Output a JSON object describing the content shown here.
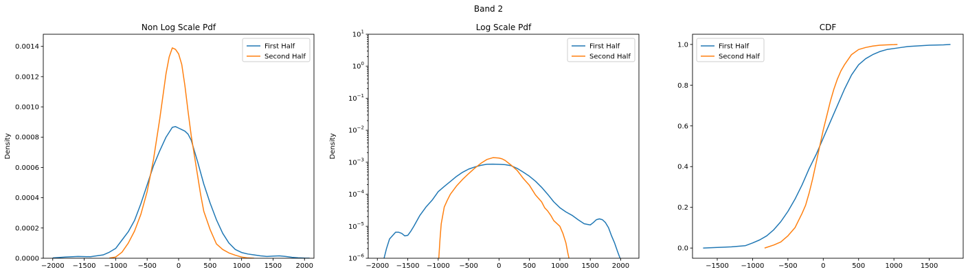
{
  "figure": {
    "suptitle": "Band 2"
  },
  "colors": {
    "series1": "#1f77b4",
    "series2": "#ff7f0e"
  },
  "chart_data": [
    {
      "type": "line",
      "title": "Non Log Scale Pdf",
      "xlabel": "",
      "ylabel": "Density",
      "xlim": [
        -2150,
        2150
      ],
      "ylim": [
        0,
        0.00148
      ],
      "yscale": "linear",
      "xticks": [
        -2000,
        -1500,
        -1000,
        -500,
        0,
        500,
        1000,
        1500,
        2000
      ],
      "yticks": [
        0,
        0.0002,
        0.0004,
        0.0006,
        0.0008,
        0.001,
        0.0012,
        0.0014
      ],
      "ytick_labels": [
        "0.0000",
        "0.0002",
        "0.0004",
        "0.0006",
        "0.0008",
        "0.0010",
        "0.0012",
        "0.0014"
      ],
      "legend_position": "upper right",
      "series": [
        {
          "name": "First Half",
          "x": [
            -2000,
            -1800,
            -1600,
            -1400,
            -1200,
            -1100,
            -1000,
            -900,
            -800,
            -700,
            -600,
            -500,
            -400,
            -300,
            -200,
            -100,
            -50,
            0,
            50,
            100,
            150,
            200,
            300,
            400,
            500,
            600,
            700,
            800,
            900,
            1000,
            1100,
            1200,
            1300,
            1400,
            1500,
            1600,
            1700,
            1800,
            1900,
            2000,
            2080
          ],
          "y": [
            2e-06,
            8e-06,
            1.2e-05,
            1e-05,
            2.2e-05,
            4e-05,
            6.5e-05,
            0.00012,
            0.000175,
            0.00025,
            0.00036,
            0.000485,
            0.00061,
            0.00071,
            0.0008,
            0.000865,
            0.00087,
            0.00086,
            0.00085,
            0.00084,
            0.00082,
            0.00078,
            0.00064,
            0.00049,
            0.000365,
            0.000255,
            0.000165,
            0.0001,
            5.8e-05,
            3.8e-05,
            2.8e-05,
            2.2e-05,
            1.6e-05,
            1.2e-05,
            1.4e-05,
            1.6e-05,
            1.2e-05,
            6e-06,
            3e-06,
            1e-06,
            5e-07
          ]
        },
        {
          "name": "Second Half",
          "x": [
            -1100,
            -1000,
            -900,
            -800,
            -700,
            -600,
            -500,
            -400,
            -300,
            -200,
            -150,
            -100,
            -50,
            0,
            50,
            100,
            150,
            200,
            250,
            300,
            350,
            400,
            500,
            600,
            700,
            800,
            900,
            1000,
            1100,
            1200
          ],
          "y": [
            1e-06,
            8e-06,
            4e-05,
            0.0001,
            0.00018,
            0.00029,
            0.00044,
            0.00065,
            0.00092,
            0.00122,
            0.00133,
            0.00139,
            0.00138,
            0.00135,
            0.00128,
            0.00114,
            0.00097,
            0.00081,
            0.00068,
            0.00055,
            0.00042,
            0.00031,
            0.00019,
            9.5e-05,
            5.8e-05,
            3.5e-05,
            2e-05,
            8e-06,
            2e-06,
            2e-07
          ]
        }
      ]
    },
    {
      "type": "line",
      "title": "Log Scale Pdf",
      "xlabel": "",
      "ylabel": "Density",
      "xlim": [
        -2150,
        2300
      ],
      "ylim": [
        1e-06,
        10
      ],
      "yscale": "log",
      "xticks": [
        -2000,
        -1500,
        -1000,
        -500,
        0,
        500,
        1000,
        1500,
        2000
      ],
      "yticks": [
        1e-06,
        1e-05,
        0.0001,
        0.001,
        0.01,
        0.1,
        1,
        10
      ],
      "ytick_labels": [
        [
          "10",
          "−6"
        ],
        [
          "10",
          "−5"
        ],
        [
          "10",
          "−4"
        ],
        [
          "10",
          "−3"
        ],
        [
          "10",
          "−2"
        ],
        [
          "10",
          "−1"
        ],
        [
          "10",
          "0"
        ],
        [
          "10",
          "1"
        ]
      ],
      "legend_position": "upper right",
      "series": [
        {
          "name": "First Half",
          "x": [
            -1890,
            -1850,
            -1800,
            -1700,
            -1650,
            -1600,
            -1550,
            -1500,
            -1450,
            -1400,
            -1300,
            -1200,
            -1100,
            -1000,
            -900,
            -800,
            -700,
            -600,
            -500,
            -400,
            -300,
            -200,
            -100,
            0,
            100,
            200,
            300,
            400,
            500,
            600,
            700,
            800,
            900,
            1000,
            1100,
            1200,
            1300,
            1400,
            1500,
            1550,
            1600,
            1650,
            1700,
            1750,
            1800,
            1850,
            1900,
            1950,
            1990
          ],
          "y": [
            1e-06,
            2e-06,
            4e-06,
            6.5e-06,
            6.5e-06,
            6e-06,
            5e-06,
            5.2e-06,
            7e-06,
            1e-05,
            2.2e-05,
            4e-05,
            6.5e-05,
            0.00012,
            0.000175,
            0.00025,
            0.00036,
            0.000485,
            0.00061,
            0.00071,
            0.0008,
            0.000865,
            0.00087,
            0.00086,
            0.00084,
            0.00078,
            0.00064,
            0.00049,
            0.000365,
            0.000255,
            0.000165,
            0.0001,
            5.8e-05,
            3.8e-05,
            2.8e-05,
            2.2e-05,
            1.6e-05,
            1.2e-05,
            1.1e-05,
            1.3e-05,
            1.6e-05,
            1.7e-05,
            1.6e-05,
            1.3e-05,
            9e-06,
            5e-06,
            3e-06,
            1.6e-06,
            1e-06
          ]
        },
        {
          "name": "Second Half",
          "x": [
            -990,
            -970,
            -950,
            -900,
            -850,
            -800,
            -700,
            -600,
            -500,
            -400,
            -300,
            -200,
            -100,
            -50,
            0,
            50,
            100,
            200,
            300,
            400,
            500,
            600,
            700,
            750,
            800,
            850,
            900,
            1000,
            1050,
            1100,
            1130,
            1150
          ],
          "y": [
            1e-06,
            4e-06,
            1.2e-05,
            4e-05,
            6.5e-05,
            0.0001,
            0.00018,
            0.00029,
            0.00044,
            0.00065,
            0.00092,
            0.00122,
            0.00139,
            0.00138,
            0.00135,
            0.00128,
            0.00114,
            0.00081,
            0.00055,
            0.00031,
            0.00019,
            9.5e-05,
            5.8e-05,
            3.8e-05,
            3e-05,
            2.2e-05,
            1.5e-05,
            1e-05,
            6e-06,
            3e-06,
            1.5e-06,
            1e-06
          ]
        }
      ]
    },
    {
      "type": "line",
      "title": "CDF",
      "xlabel": "",
      "ylabel": "",
      "xlim": [
        -1850,
        1980
      ],
      "ylim": [
        -0.05,
        1.05
      ],
      "yscale": "linear",
      "xticks": [
        -1500,
        -1000,
        -500,
        0,
        500,
        1000,
        1500
      ],
      "yticks": [
        0,
        0.2,
        0.4,
        0.6,
        0.8,
        1.0
      ],
      "ytick_labels": [
        "0.0",
        "0.2",
        "0.4",
        "0.6",
        "0.8",
        "1.0"
      ],
      "legend_position": "upper left",
      "series": [
        {
          "name": "First Half",
          "x": [
            -1700,
            -1500,
            -1300,
            -1100,
            -1000,
            -900,
            -800,
            -700,
            -600,
            -500,
            -400,
            -300,
            -200,
            -100,
            -50,
            0,
            50,
            100,
            200,
            300,
            400,
            500,
            600,
            700,
            800,
            900,
            1000,
            1100,
            1200,
            1300,
            1400,
            1500,
            1600,
            1700,
            1800
          ],
          "y": [
            0,
            0.003,
            0.006,
            0.012,
            0.025,
            0.04,
            0.06,
            0.09,
            0.13,
            0.18,
            0.24,
            0.31,
            0.39,
            0.46,
            0.5,
            0.54,
            0.58,
            0.62,
            0.7,
            0.78,
            0.85,
            0.9,
            0.93,
            0.95,
            0.965,
            0.975,
            0.98,
            0.985,
            0.99,
            0.992,
            0.994,
            0.996,
            0.997,
            0.998,
            1.0
          ]
        },
        {
          "name": "Second Half",
          "x": [
            -830,
            -700,
            -600,
            -500,
            -400,
            -300,
            -250,
            -200,
            -150,
            -100,
            -50,
            0,
            50,
            100,
            150,
            200,
            250,
            300,
            400,
            500,
            600,
            700,
            800,
            900,
            1000,
            1050
          ],
          "y": [
            0,
            0.015,
            0.03,
            0.06,
            0.1,
            0.17,
            0.21,
            0.27,
            0.34,
            0.42,
            0.5,
            0.58,
            0.65,
            0.72,
            0.78,
            0.83,
            0.87,
            0.9,
            0.95,
            0.975,
            0.985,
            0.992,
            0.996,
            0.998,
            0.999,
            1.0
          ]
        }
      ]
    }
  ]
}
